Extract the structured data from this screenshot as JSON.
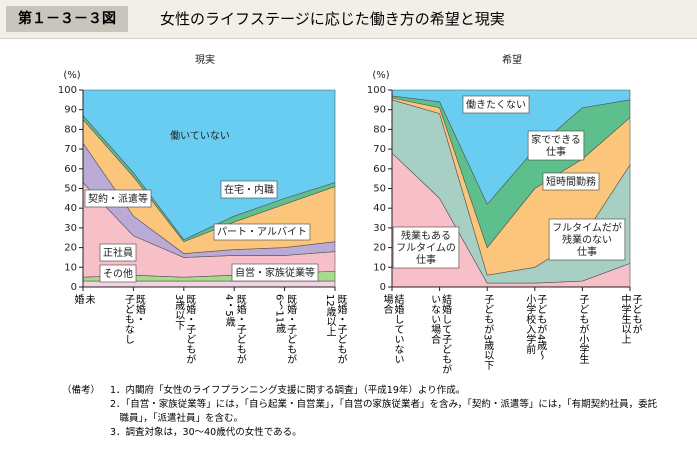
{
  "header": {
    "figure_number": "第１－３－３図",
    "title": "女性のライフステージに応じた働き方の希望と現実"
  },
  "chart_data": [
    {
      "type": "area",
      "stacked": true,
      "title": "現実",
      "y_unit": "(%)",
      "categories": [
        "未\n婚",
        "既婚・\n子どもなし",
        "既婚・子どもが\n3歳以下",
        "既婚・子どもが\n4・5歳",
        "既婚・子どもが\n6～11歳",
        "既婚・子どもが\n12歳以上"
      ],
      "ylim": [
        0,
        100
      ],
      "yticks": [
        0,
        10,
        20,
        30,
        40,
        50,
        60,
        70,
        80,
        90,
        100
      ],
      "series": [
        {
          "name": "その他",
          "color": "#f3d3e3",
          "values": [
            3,
            3,
            3,
            3,
            3,
            3
          ]
        },
        {
          "name": "自営・家族従業等",
          "color": "#a9d88f",
          "values": [
            2,
            3,
            2,
            3,
            4,
            5
          ]
        },
        {
          "name": "正社員",
          "color": "#f7bfc8",
          "values": [
            48,
            20,
            10,
            10,
            9,
            10
          ]
        },
        {
          "name": "契約・派遣等",
          "color": "#bcaad6",
          "values": [
            20,
            10,
            2,
            3,
            4,
            5
          ]
        },
        {
          "name": "パート・アルバイト",
          "color": "#fbc57c",
          "values": [
            12,
            20,
            6,
            14,
            22,
            28
          ]
        },
        {
          "name": "在宅・内職",
          "color": "#5dbf8c",
          "values": [
            2,
            2,
            1,
            3,
            3,
            2
          ]
        },
        {
          "name": "働いていない",
          "color": "#69cdf2",
          "values": [
            13,
            42,
            76,
            64,
            55,
            47
          ]
        }
      ]
    },
    {
      "type": "area",
      "stacked": true,
      "title": "希望",
      "y_unit": "(%)",
      "categories": [
        "結婚していない\n場合",
        "結婚して子どもが\nいない場合",
        "子どもが3歳以下",
        "子どもが4歳～\n小学校入学前",
        "子どもが小学生",
        "子どもが\n中学生以上"
      ],
      "ylim": [
        0,
        100
      ],
      "yticks": [
        0,
        10,
        20,
        30,
        40,
        50,
        60,
        70,
        80,
        90,
        100
      ],
      "series": [
        {
          "name": "残業もある\nフルタイムの\n仕事",
          "color": "#f7bfc8",
          "values": [
            68,
            45,
            2,
            2,
            3,
            12
          ]
        },
        {
          "name": "フルタイムだが\n残業のない\n仕事",
          "color": "#a8cfc4",
          "values": [
            27,
            43,
            4,
            8,
            22,
            50
          ]
        },
        {
          "name": "短時間勤務",
          "color": "#fbc57c",
          "values": [
            1,
            3,
            14,
            40,
            40,
            24
          ]
        },
        {
          "name": "家でできる\n仕事",
          "color": "#5dbf8c",
          "values": [
            1,
            3,
            22,
            20,
            26,
            9
          ]
        },
        {
          "name": "働きたくない",
          "color": "#69cdf2",
          "values": [
            3,
            6,
            58,
            30,
            9,
            5
          ]
        }
      ]
    }
  ],
  "notes": {
    "label": "（備考）",
    "items": [
      "1．内閣府「女性のライフプランニング支援に関する調査」（平成19年）より作成。",
      "2．「自営・家族従業等」には，「自ら起業・自営業」，「自営の家族従業者」を含み，「契約・派遣等」には，「有期契約社員，委託職員」，「派遣社員」を含む。",
      "3．調査対象は，30～40歳代の女性である。"
    ]
  }
}
